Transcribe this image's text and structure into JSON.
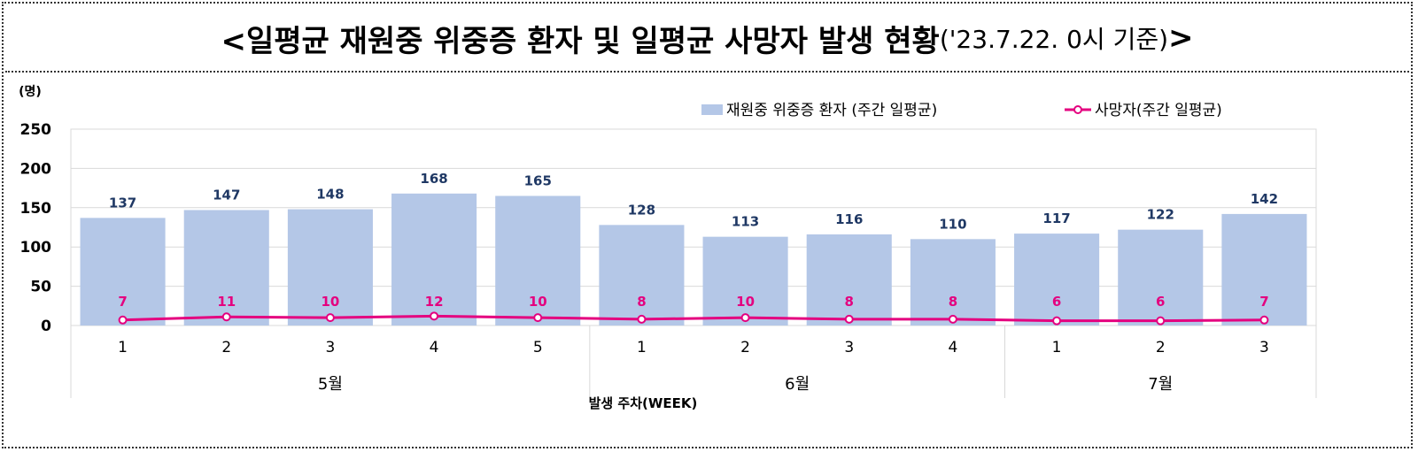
{
  "title": {
    "main": "<일평균 재원중 위중증 환자 및 일평균 사망자 발생 현황",
    "sub": "('23.7.22. 0시 기준)",
    "end": ">"
  },
  "colors": {
    "bar": "#b4c7e7",
    "line": "#e4007f",
    "bar_label": "#1f3864",
    "line_label": "#e4007f",
    "grid": "#d9d9d9"
  },
  "chart_data": {
    "type": "bar",
    "y_unit": "(명)",
    "ylim": [
      0,
      250
    ],
    "yticks": [
      "0",
      "50",
      "100",
      "150",
      "200",
      "250"
    ],
    "xlabel": "발생 주차(WEEK)",
    "grid": true,
    "legend_position": "top-right",
    "weeks": [
      "1",
      "2",
      "3",
      "4",
      "5",
      "1",
      "2",
      "3",
      "4",
      "1",
      "2",
      "3"
    ],
    "months": [
      {
        "label": "5월",
        "count": 5
      },
      {
        "label": "6월",
        "count": 4
      },
      {
        "label": "7월",
        "count": 3
      }
    ],
    "series": [
      {
        "name": "재원중 위중증 환자 (주간 일평균)",
        "type": "bar",
        "values": [
          137,
          147,
          148,
          168,
          165,
          128,
          113,
          116,
          110,
          117,
          122,
          142
        ]
      },
      {
        "name": "사망자(주간 일평균)",
        "type": "line",
        "values": [
          7,
          11,
          10,
          12,
          10,
          8,
          10,
          8,
          8,
          6,
          6,
          7
        ]
      }
    ]
  }
}
